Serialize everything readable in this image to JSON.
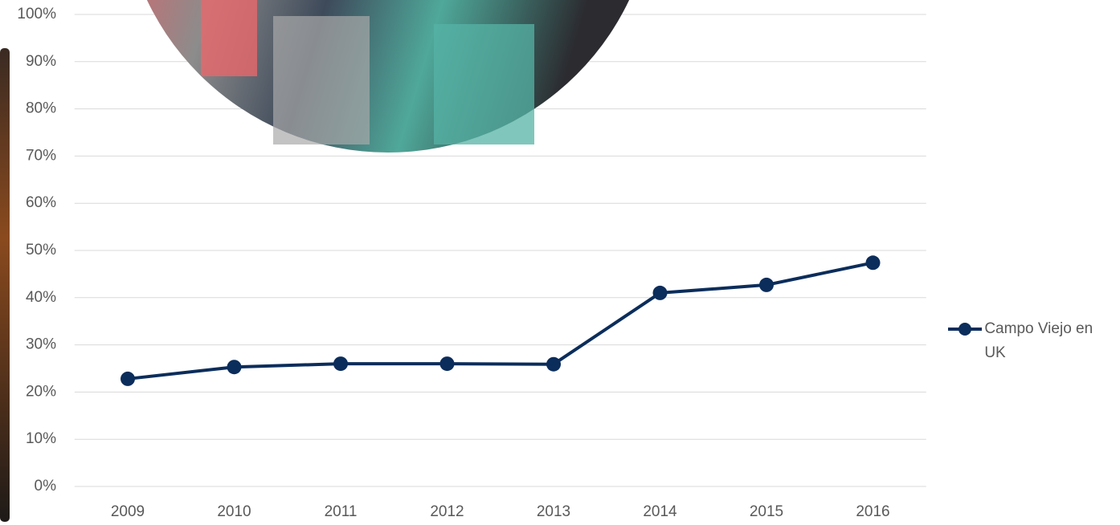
{
  "chart_data": {
    "type": "line",
    "categories": [
      "2009",
      "2010",
      "2011",
      "2012",
      "2013",
      "2014",
      "2015",
      "2016"
    ],
    "series": [
      {
        "name": "Campo Viejo en UK",
        "color": "#0b2d5b",
        "values": [
          22.8,
          25.3,
          26.0,
          26.0,
          25.9,
          41.0,
          42.7,
          47.4
        ]
      }
    ],
    "ylim": [
      0,
      100
    ],
    "yticks": [
      {
        "value": 0,
        "label": "0%"
      },
      {
        "value": 10,
        "label": "10%"
      },
      {
        "value": 20,
        "label": "20%"
      },
      {
        "value": 30,
        "label": "30%"
      },
      {
        "value": 40,
        "label": "40%"
      },
      {
        "value": 50,
        "label": "50%"
      },
      {
        "value": 60,
        "label": "60%"
      },
      {
        "value": 70,
        "label": "70%"
      },
      {
        "value": 80,
        "label": "80%"
      },
      {
        "value": 90,
        "label": "90%"
      },
      {
        "value": 100,
        "label": "100%"
      }
    ],
    "grid": true,
    "legend": "right"
  }
}
